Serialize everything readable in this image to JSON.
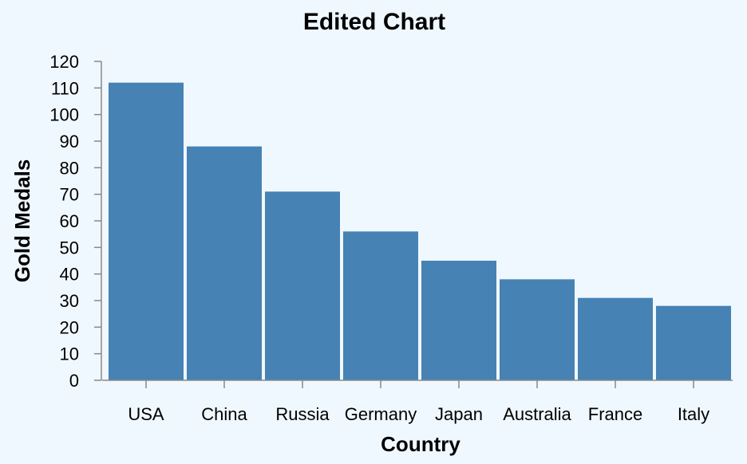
{
  "chart_data": {
    "type": "bar",
    "title": "Edited Chart",
    "xlabel": "Country",
    "ylabel": "Gold Medals",
    "categories": [
      "USA",
      "China",
      "Russia",
      "Germany",
      "Japan",
      "Australia",
      "France",
      "Italy"
    ],
    "values": [
      112,
      88,
      71,
      56,
      45,
      38,
      31,
      28
    ],
    "ylim": [
      0,
      120
    ],
    "yticks": [
      0,
      10,
      20,
      30,
      40,
      50,
      60,
      70,
      80,
      90,
      100,
      110,
      120
    ],
    "grid": false,
    "bar_color": "#4682b4",
    "background": "#f0f8ff"
  }
}
